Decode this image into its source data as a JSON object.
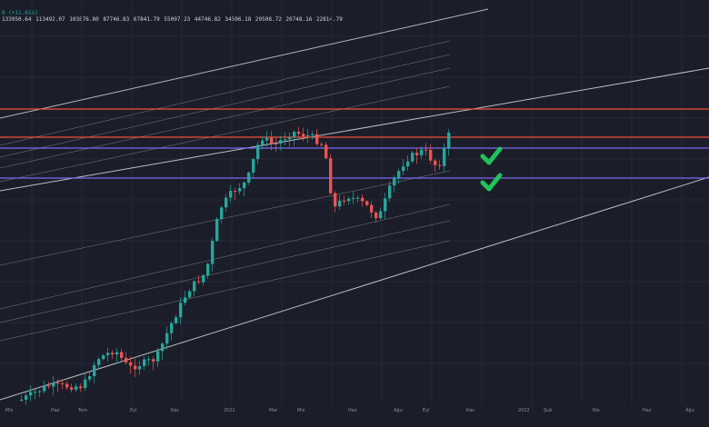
{
  "header": {
    "change_text": "0 (+11.65%)",
    "levels_text": "133950.64  113492.07  103876.80  87746.83  67841.79  55097.23  44746.82  34596.18  29508.72  20748.16  22814.79"
  },
  "x_axis_labels": [
    "Mis",
    "Haz",
    "Tem",
    "Eyl",
    "Kas",
    "2021",
    "Mar",
    "Mis",
    "Haz",
    "Ağu",
    "Eyl",
    "Kas",
    "2022",
    "Şub",
    "Nis",
    "Haz",
    "Ağu"
  ],
  "colors": {
    "background": "#1b1e29",
    "up": "#26a69a",
    "down": "#ef5350",
    "resistance": "#f0503c",
    "support": "#7b68ee",
    "channel": "#d8dbe2",
    "check": "#1fc35a"
  },
  "icons": [
    "check-icon",
    "check-icon"
  ]
}
